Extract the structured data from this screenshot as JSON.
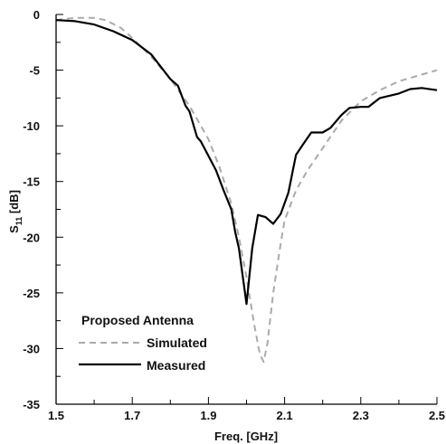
{
  "chart_data": {
    "type": "line",
    "xlabel": "Freq. [GHz]",
    "ylabel_main": "S",
    "ylabel_sub": "11",
    "ylabel_unit": " [dB]",
    "xlim": [
      1.5,
      2.5
    ],
    "ylim": [
      -35,
      0
    ],
    "xticks": [
      1.5,
      1.7,
      1.9,
      2.1,
      2.3,
      2.5
    ],
    "xtick_labels": [
      "1.5",
      "1.7",
      "1.9",
      "2.1",
      "2.3",
      "2.5"
    ],
    "yticks": [
      0,
      -5,
      -10,
      -15,
      -20,
      -25,
      -30,
      -35
    ],
    "ytick_labels": [
      "0",
      "-5",
      "-10",
      "-15",
      "-20",
      "-25",
      "-30",
      "-35"
    ],
    "grid": false,
    "legend": {
      "title": "Proposed Antenna",
      "placement": "bottom-left"
    },
    "series": [
      {
        "name": "Simulated",
        "color": "#aaaaaa",
        "dash": true,
        "points": [
          [
            1.5,
            -0.5
          ],
          [
            1.55,
            -0.3
          ],
          [
            1.6,
            -0.3
          ],
          [
            1.63,
            -0.5
          ],
          [
            1.67,
            -1.2
          ],
          [
            1.7,
            -2.1
          ],
          [
            1.75,
            -3.8
          ],
          [
            1.8,
            -5.8
          ],
          [
            1.85,
            -8.2
          ],
          [
            1.9,
            -11.2
          ],
          [
            1.93,
            -13.8
          ],
          [
            1.96,
            -17.0
          ],
          [
            1.98,
            -20.0
          ],
          [
            2.0,
            -23.6
          ],
          [
            2.02,
            -27.8
          ],
          [
            2.035,
            -30.5
          ],
          [
            2.045,
            -31.2
          ],
          [
            2.055,
            -29.5
          ],
          [
            2.07,
            -25.0
          ],
          [
            2.09,
            -20.5
          ],
          [
            2.1,
            -18.5
          ],
          [
            2.13,
            -15.8
          ],
          [
            2.16,
            -14.0
          ],
          [
            2.2,
            -12.0
          ],
          [
            2.25,
            -9.5
          ],
          [
            2.3,
            -7.8
          ],
          [
            2.35,
            -6.8
          ],
          [
            2.4,
            -6.0
          ],
          [
            2.45,
            -5.5
          ],
          [
            2.5,
            -5.0
          ]
        ]
      },
      {
        "name": "Measured",
        "color": "#000000",
        "dash": false,
        "points": [
          [
            1.5,
            -0.5
          ],
          [
            1.55,
            -0.6
          ],
          [
            1.6,
            -0.9
          ],
          [
            1.65,
            -1.5
          ],
          [
            1.7,
            -2.3
          ],
          [
            1.75,
            -3.6
          ],
          [
            1.8,
            -5.8
          ],
          [
            1.82,
            -6.4
          ],
          [
            1.84,
            -8.2
          ],
          [
            1.85,
            -8.7
          ],
          [
            1.87,
            -11.0
          ],
          [
            1.88,
            -11.4
          ],
          [
            1.9,
            -12.7
          ],
          [
            1.92,
            -14.0
          ],
          [
            1.94,
            -15.8
          ],
          [
            1.96,
            -17.5
          ],
          [
            1.97,
            -19.5
          ],
          [
            1.98,
            -21.0
          ],
          [
            1.99,
            -23.5
          ],
          [
            2.0,
            -26.0
          ],
          [
            2.015,
            -21.0
          ],
          [
            2.03,
            -18.0
          ],
          [
            2.05,
            -18.2
          ],
          [
            2.07,
            -18.8
          ],
          [
            2.09,
            -17.9
          ],
          [
            2.11,
            -16.0
          ],
          [
            2.13,
            -12.6
          ],
          [
            2.15,
            -11.6
          ],
          [
            2.17,
            -10.6
          ],
          [
            2.2,
            -10.6
          ],
          [
            2.22,
            -10.2
          ],
          [
            2.25,
            -9.0
          ],
          [
            2.27,
            -8.4
          ],
          [
            2.3,
            -8.3
          ],
          [
            2.32,
            -8.3
          ],
          [
            2.35,
            -7.5
          ],
          [
            2.4,
            -7.1
          ],
          [
            2.43,
            -6.7
          ],
          [
            2.46,
            -6.6
          ],
          [
            2.5,
            -6.8
          ]
        ]
      }
    ]
  }
}
